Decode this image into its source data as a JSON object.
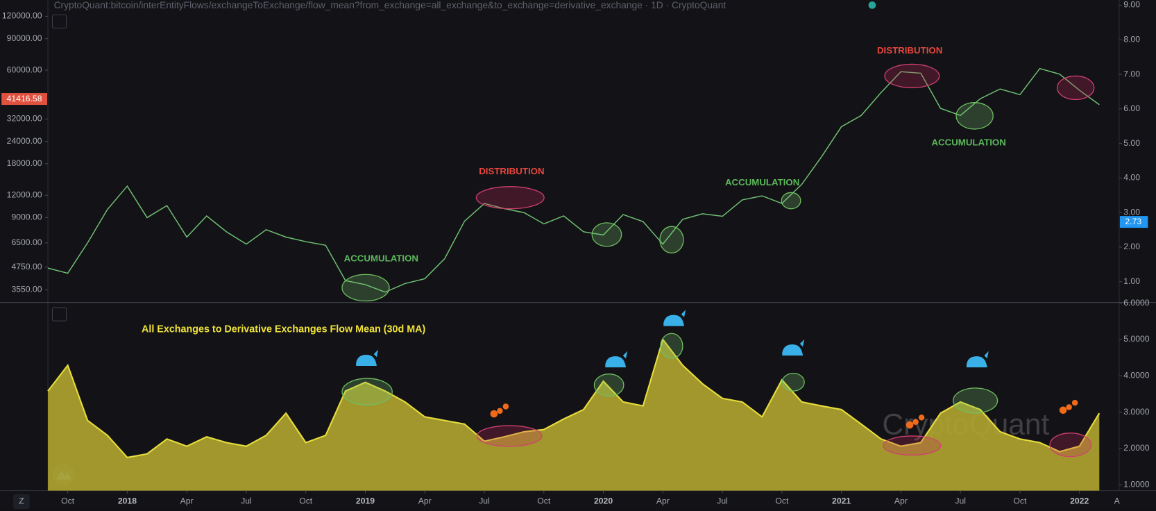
{
  "header": {
    "source": "CryptoQuant:bitcoin/interEntityFlows/exchangeToExchange/flow_mean?from_exchange=all_exchange&to_exchange=derivative_exchange · 1D · CryptoQuant"
  },
  "ui": {
    "timezone_button": "Z",
    "auto_scale_button": "A"
  },
  "watermark": "CryptoQuant",
  "chart_data": [
    {
      "type": "line",
      "log_scale": true,
      "color": "#6fbf73",
      "x": [
        "2017-09",
        "2017-10",
        "2017-11",
        "2017-12",
        "2018-01",
        "2018-02",
        "2018-03",
        "2018-04",
        "2018-05",
        "2018-06",
        "2018-07",
        "2018-08",
        "2018-09",
        "2018-10",
        "2018-11",
        "2018-12",
        "2019-01",
        "2019-02",
        "2019-03",
        "2019-04",
        "2019-05",
        "2019-06",
        "2019-07",
        "2019-08",
        "2019-09",
        "2019-10",
        "2019-11",
        "2019-12",
        "2020-01",
        "2020-02",
        "2020-03",
        "2020-04",
        "2020-05",
        "2020-06",
        "2020-07",
        "2020-08",
        "2020-09",
        "2020-10",
        "2020-11",
        "2020-12",
        "2021-01",
        "2021-02",
        "2021-03",
        "2021-04",
        "2021-05",
        "2021-06",
        "2021-07",
        "2021-08",
        "2021-09",
        "2021-10",
        "2021-11",
        "2021-12",
        "2022-01",
        "2022-02"
      ],
      "values": [
        4700,
        4400,
        6500,
        10000,
        13500,
        9000,
        10500,
        7000,
        9200,
        7500,
        6400,
        7700,
        7000,
        6600,
        6300,
        4000,
        3800,
        3450,
        3850,
        4100,
        5300,
        8600,
        10800,
        10100,
        9600,
        8300,
        9200,
        7500,
        7200,
        9350,
        8550,
        6400,
        8800,
        9450,
        9150,
        11300,
        11900,
        10800,
        13800,
        19700,
        29000,
        33500,
        45000,
        58800,
        57700,
        36700,
        33500,
        41500,
        47100,
        43800,
        61300,
        57000,
        46300,
        38500
      ],
      "last_value": 41416.58,
      "xlim": [
        "2017-09",
        "2022-03"
      ],
      "ylim": [
        3020,
        148000
      ],
      "yticks": [
        {
          "value": 120000,
          "label": "120000.00"
        },
        {
          "value": 90000,
          "label": "90000.00"
        },
        {
          "value": 60000,
          "label": "60000.00"
        },
        {
          "value": 32000,
          "label": "32000.00"
        },
        {
          "value": 24000,
          "label": "24000.00"
        },
        {
          "value": 18000,
          "label": "18000.00"
        },
        {
          "value": 12000,
          "label": "12000.00"
        },
        {
          "value": 9000,
          "label": "9000.00"
        },
        {
          "value": 6500,
          "label": "6500.00"
        },
        {
          "value": 4750,
          "label": "4750.00"
        },
        {
          "value": 3550,
          "label": "3550.00"
        }
      ],
      "y2lim": [
        0.4,
        9.15
      ],
      "y2ticks": [
        {
          "value": 9,
          "label": "9.00"
        },
        {
          "value": 8,
          "label": "8.00"
        },
        {
          "value": 7,
          "label": "7.00"
        },
        {
          "value": 6,
          "label": "6.00"
        },
        {
          "value": 5,
          "label": "5.00"
        },
        {
          "value": 4,
          "label": "4.00"
        },
        {
          "value": 3,
          "label": "3.00"
        },
        {
          "value": 2,
          "label": "2.00"
        },
        {
          "value": 1,
          "label": "1.00"
        }
      ],
      "y2_last_value": 2.73,
      "annotations": [
        "ACCUMULATION",
        "DISTRIBUTION",
        "ACCUMULATION",
        "DISTRIBUTION",
        "ACCUMULATION"
      ]
    },
    {
      "type": "area",
      "title": "All Exchanges to Derivative Exchanges Flow Mean (30d MA)",
      "color": "#aea32f",
      "line_color": "#e6dc3c",
      "x": [
        "2017-09",
        "2017-10",
        "2017-11",
        "2017-12",
        "2018-01",
        "2018-02",
        "2018-03",
        "2018-04",
        "2018-05",
        "2018-06",
        "2018-07",
        "2018-08",
        "2018-09",
        "2018-10",
        "2018-11",
        "2018-12",
        "2019-01",
        "2019-02",
        "2019-03",
        "2019-04",
        "2019-05",
        "2019-06",
        "2019-07",
        "2019-08",
        "2019-09",
        "2019-10",
        "2019-11",
        "2019-12",
        "2020-01",
        "2020-02",
        "2020-03",
        "2020-04",
        "2020-05",
        "2020-06",
        "2020-07",
        "2020-08",
        "2020-09",
        "2020-10",
        "2020-11",
        "2020-12",
        "2021-01",
        "2021-02",
        "2021-03",
        "2021-04",
        "2021-05",
        "2021-06",
        "2021-07",
        "2021-08",
        "2021-09",
        "2021-10",
        "2021-11",
        "2021-12",
        "2022-01",
        "2022-02"
      ],
      "values": [
        3.58,
        4.29,
        2.77,
        2.36,
        1.75,
        1.85,
        2.26,
        2.06,
        2.32,
        2.16,
        2.06,
        2.36,
        2.97,
        2.16,
        2.36,
        3.58,
        3.82,
        3.58,
        3.28,
        2.87,
        2.77,
        2.67,
        2.2,
        2.32,
        2.46,
        2.52,
        2.81,
        3.07,
        3.85,
        3.28,
        3.17,
        5.0,
        4.29,
        3.78,
        3.38,
        3.28,
        2.87,
        3.89,
        3.28,
        3.17,
        3.07,
        2.67,
        2.26,
        2.06,
        2.16,
        2.97,
        3.28,
        3.07,
        2.46,
        2.26,
        2.16,
        1.91,
        2.06,
        2.97
      ],
      "xlim": [
        "2017-09",
        "2022-03"
      ],
      "ylim": [
        0.84,
        6.02
      ],
      "yticks": [
        {
          "value": 6,
          "label": "6.0000"
        },
        {
          "value": 5,
          "label": "5.0000"
        },
        {
          "value": 4,
          "label": "4.0000"
        },
        {
          "value": 3,
          "label": "3.0000"
        },
        {
          "value": 2,
          "label": "2.0000"
        },
        {
          "value": 1,
          "label": "1.0000"
        }
      ],
      "xticks": [
        {
          "value": "2017-10",
          "label": "Oct"
        },
        {
          "value": "2018-01",
          "label": "2018"
        },
        {
          "value": "2018-04",
          "label": "Apr"
        },
        {
          "value": "2018-07",
          "label": "Jul"
        },
        {
          "value": "2018-10",
          "label": "Oct"
        },
        {
          "value": "2019-01",
          "label": "2019"
        },
        {
          "value": "2019-04",
          "label": "Apr"
        },
        {
          "value": "2019-07",
          "label": "Jul"
        },
        {
          "value": "2019-10",
          "label": "Oct"
        },
        {
          "value": "2020-01",
          "label": "2020"
        },
        {
          "value": "2020-04",
          "label": "Apr"
        },
        {
          "value": "2020-07",
          "label": "Jul"
        },
        {
          "value": "2020-10",
          "label": "Oct"
        },
        {
          "value": "2021-01",
          "label": "2021"
        },
        {
          "value": "2021-04",
          "label": "Apr"
        },
        {
          "value": "2021-07",
          "label": "Jul"
        },
        {
          "value": "2021-10",
          "label": "Oct"
        },
        {
          "value": "2022-01",
          "label": "2022"
        }
      ]
    }
  ]
}
